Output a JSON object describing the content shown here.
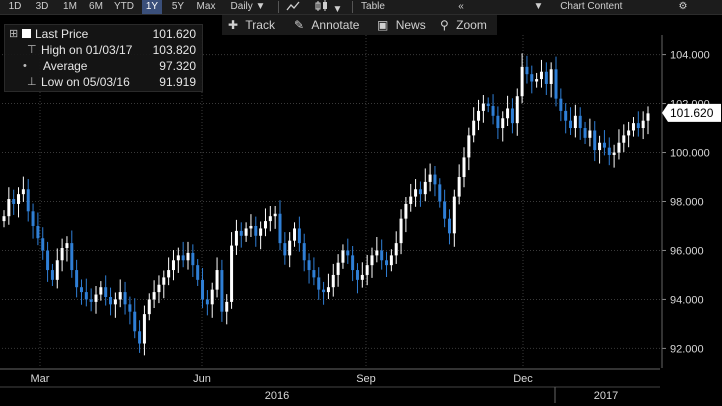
{
  "toolbar": {
    "periods": [
      "1D",
      "3D",
      "1M",
      "6M",
      "YTD",
      "1Y",
      "5Y",
      "Max"
    ],
    "active_period": "1Y",
    "frequency": "Daily",
    "table_label": "Table",
    "chart_content_label": "Chart Content",
    "icons": [
      "line-chart-icon",
      "candle-chart-icon",
      "back-icon",
      "gear-icon"
    ]
  },
  "subbar": {
    "track_label": "Track",
    "annotate_label": "Annotate",
    "news_label": "News",
    "zoom_label": "Zoom"
  },
  "legend": {
    "rows": [
      {
        "label": "Last Price",
        "value": "101.620"
      },
      {
        "label": "High on 01/03/17",
        "value": "103.820"
      },
      {
        "label": "Average",
        "value": "97.320"
      },
      {
        "label": "Low on 05/03/16",
        "value": "91.919"
      }
    ]
  },
  "colors": {
    "up_candle": "#ffffff",
    "down_candle": "#2f7fd6",
    "grid": "#3a3a3a",
    "price_tag": "#ffffff",
    "background": "#000000"
  },
  "chart_data": {
    "type": "candlestick",
    "last_price": "101.620",
    "ylim": [
      91.2,
      104.8
    ],
    "yticks": [
      "104.000",
      "102.000",
      "100.000",
      "98.000",
      "96.000",
      "94.000",
      "92.000"
    ],
    "ytick_values": [
      104,
      102,
      100,
      98,
      96,
      94,
      92
    ],
    "x_month_labels": [
      "Mar",
      "Jun",
      "Sep",
      "Dec"
    ],
    "x_year_labels": [
      "2016",
      "2017"
    ],
    "grid": true,
    "series": [
      {
        "values": [
          97.4,
          98.1,
          97.9,
          98.3,
          98.5,
          97.6,
          97.0,
          96.5,
          96.0,
          95.2,
          94.8,
          95.6,
          96.1,
          96.3,
          95.2,
          94.5,
          94.3,
          94.0,
          93.9,
          94.2,
          94.5,
          94.1,
          93.8,
          94.0,
          94.3,
          93.8,
          93.5,
          92.7,
          92.2,
          93.4,
          94.0,
          94.3,
          94.6,
          94.9,
          95.2,
          95.6,
          95.8,
          95.6,
          95.9,
          95.4,
          94.8,
          94.0,
          93.8,
          94.4,
          95.2,
          93.5,
          93.9,
          96.2,
          96.8,
          96.6,
          96.9,
          97.0,
          96.6,
          96.9,
          97.2,
          97.4,
          97.5,
          96.3,
          95.8,
          96.4,
          96.9,
          96.3,
          95.6,
          95.2,
          94.9,
          94.4,
          94.3,
          94.5,
          95.0,
          95.5,
          96.0,
          95.8,
          95.2,
          94.8,
          95.0,
          95.4,
          95.8,
          96.0,
          95.6,
          95.4,
          95.8,
          96.3,
          97.3,
          97.9,
          98.2,
          98.5,
          98.3,
          98.8,
          99.1,
          98.7,
          98.0,
          97.3,
          96.7,
          98.2,
          99.0,
          99.8,
          100.7,
          101.3,
          101.7,
          102.0,
          101.9,
          101.5,
          101.0,
          101.4,
          101.8,
          101.2,
          102.3,
          103.5,
          103.2,
          102.9,
          103.0,
          103.3,
          102.8,
          103.4,
          102.2,
          101.7,
          101.3,
          101.0,
          101.5,
          101.0,
          100.6,
          100.9,
          100.1,
          100.4,
          100.2,
          99.9,
          100.0,
          100.4,
          100.7,
          100.9,
          101.2,
          101.0,
          101.3,
          101.6
        ]
      }
    ]
  }
}
